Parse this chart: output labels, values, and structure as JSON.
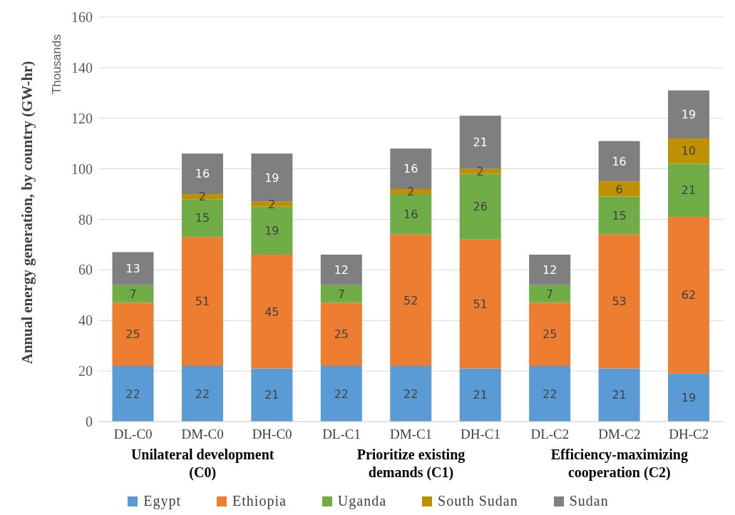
{
  "chart_data": {
    "type": "bar",
    "stacked": true,
    "ylabel": "Annual energy generation, by country (GW-hr)",
    "annotations": [
      "Thousands",
      "Unilateral development (C0)",
      "Prioritize existing demands (C1)",
      "Efficiency-maximizing cooperation (C2)"
    ],
    "categories": [
      "DL-C0",
      "DM-C0",
      "DH-C0",
      "DL-C1",
      "DM-C1",
      "DH-C1",
      "DL-C2",
      "DM-C2",
      "DH-C2"
    ],
    "series": [
      {
        "name": "Egypt",
        "color": "#5b9bd5",
        "values": [
          22,
          22,
          21,
          22,
          22,
          21,
          22,
          21,
          19
        ]
      },
      {
        "name": "Ethiopia",
        "color": "#ed7d31",
        "values": [
          25,
          51,
          45,
          25,
          52,
          51,
          25,
          53,
          62
        ]
      },
      {
        "name": "Uganda",
        "color": "#70ad47",
        "values": [
          7,
          15,
          19,
          7,
          16,
          26,
          7,
          15,
          21
        ]
      },
      {
        "name": "South Sudan",
        "color": "#bf9000",
        "values": [
          null,
          2,
          2,
          null,
          2,
          2,
          null,
          6,
          10
        ]
      },
      {
        "name": "Sudan",
        "color": "#7f7f7f",
        "values": [
          13,
          16,
          19,
          12,
          16,
          21,
          12,
          16,
          19
        ]
      }
    ],
    "ylim": [
      0,
      160
    ],
    "yticks": [
      0,
      20,
      40,
      60,
      80,
      100,
      120,
      140,
      160
    ],
    "grid": "y",
    "legend": "bottom",
    "data_labels": true
  }
}
